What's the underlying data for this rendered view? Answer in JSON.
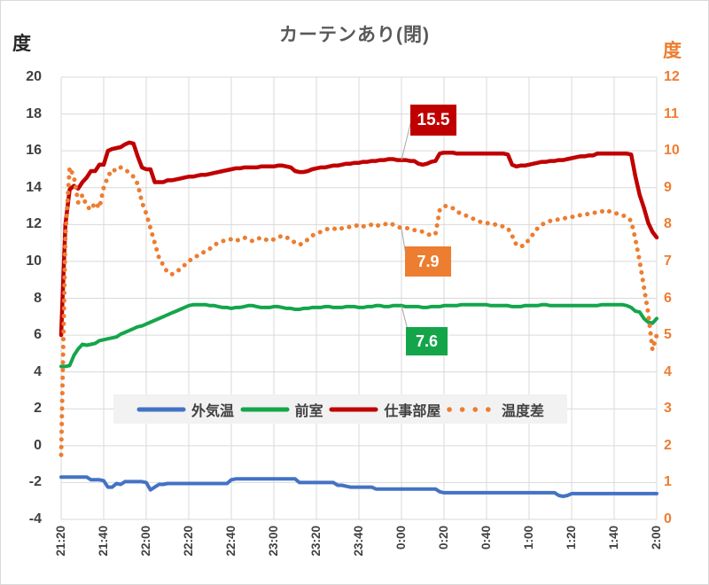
{
  "title": "カーテンあり(閉)",
  "left_axis": {
    "unit": "度",
    "ticks": [
      20,
      18,
      16,
      14,
      12,
      10,
      8,
      6,
      4,
      2,
      0,
      -2,
      -4
    ]
  },
  "right_axis": {
    "unit": "度",
    "ticks": [
      12,
      11,
      10,
      9,
      8,
      7,
      6,
      5,
      4,
      3,
      2,
      1,
      0
    ]
  },
  "x_axis": {
    "ticks": [
      "21:20",
      "21:40",
      "22:00",
      "22:20",
      "22:40",
      "23:00",
      "23:20",
      "23:40",
      "0:00",
      "0:20",
      "0:40",
      "1:00",
      "1:20",
      "1:40",
      "2:00"
    ]
  },
  "legend": {
    "items": [
      {
        "label": "外気温",
        "color": "#4472C4",
        "style": "solid"
      },
      {
        "label": "前室",
        "color": "#14A54B",
        "style": "solid"
      },
      {
        "label": "仕事部屋",
        "color": "#C00000",
        "style": "solid"
      },
      {
        "label": "温度差",
        "color": "#ED7D31",
        "style": "dotted"
      }
    ]
  },
  "data_labels": [
    {
      "text": "15.5",
      "series": "仕事部屋",
      "color": "#C00000"
    },
    {
      "text": "7.9",
      "series": "温度差",
      "color": "#ED7D31"
    },
    {
      "text": "7.6",
      "series": "前室",
      "color": "#14A54B"
    }
  ],
  "chart_data": {
    "type": "line",
    "title": "カーテンあり(閉)",
    "x_start": "21:20",
    "x_step_minutes": 2,
    "x_count": 141,
    "x_ticks": [
      "21:20",
      "21:40",
      "22:00",
      "22:20",
      "22:40",
      "23:00",
      "23:20",
      "23:40",
      "0:00",
      "0:20",
      "0:40",
      "1:00",
      "1:20",
      "1:40",
      "2:00"
    ],
    "left_ylim": [
      -4,
      20
    ],
    "right_ylim": [
      0,
      12
    ],
    "grid": true,
    "legend_position": "inside-bottom",
    "annotations": [
      {
        "text": "15.5",
        "series": "仕事部屋",
        "x": "0:00",
        "value": 15.5
      },
      {
        "text": "7.9",
        "series": "温度差",
        "x": "0:00",
        "value": 7.9
      },
      {
        "text": "7.6",
        "series": "前室",
        "x": "0:00",
        "value": 7.6
      }
    ],
    "series": [
      {
        "name": "外気温",
        "axis": "left",
        "color": "#4472C4",
        "style": "solid",
        "width": 4,
        "values": [
          -1.7,
          -1.7,
          -1.7,
          -1.7,
          -1.7,
          -1.7,
          -1.7,
          -1.85,
          -1.85,
          -1.85,
          -1.9,
          -2.25,
          -2.25,
          -2.05,
          -2.1,
          -1.95,
          -1.95,
          -1.95,
          -1.95,
          -1.95,
          -2.0,
          -2.4,
          -2.25,
          -2.1,
          -2.1,
          -2.05,
          -2.05,
          -2.05,
          -2.05,
          -2.05,
          -2.05,
          -2.05,
          -2.05,
          -2.05,
          -2.05,
          -2.05,
          -2.05,
          -2.05,
          -2.05,
          -2.05,
          -1.85,
          -1.8,
          -1.8,
          -1.8,
          -1.8,
          -1.8,
          -1.8,
          -1.8,
          -1.8,
          -1.8,
          -1.8,
          -1.8,
          -1.8,
          -1.8,
          -1.8,
          -1.8,
          -2.0,
          -2.0,
          -2.0,
          -2.0,
          -2.0,
          -2.0,
          -2.0,
          -2.0,
          -2.0,
          -2.15,
          -2.15,
          -2.2,
          -2.25,
          -2.25,
          -2.25,
          -2.25,
          -2.25,
          -2.25,
          -2.35,
          -2.35,
          -2.35,
          -2.35,
          -2.35,
          -2.35,
          -2.35,
          -2.35,
          -2.35,
          -2.35,
          -2.35,
          -2.35,
          -2.35,
          -2.35,
          -2.35,
          -2.5,
          -2.55,
          -2.55,
          -2.55,
          -2.55,
          -2.55,
          -2.55,
          -2.55,
          -2.55,
          -2.55,
          -2.55,
          -2.55,
          -2.55,
          -2.55,
          -2.55,
          -2.55,
          -2.55,
          -2.55,
          -2.55,
          -2.55,
          -2.55,
          -2.55,
          -2.55,
          -2.55,
          -2.55,
          -2.55,
          -2.55,
          -2.55,
          -2.7,
          -2.75,
          -2.7,
          -2.6,
          -2.6,
          -2.6,
          -2.6,
          -2.6,
          -2.6,
          -2.6,
          -2.6,
          -2.6,
          -2.6,
          -2.6,
          -2.6,
          -2.6,
          -2.6,
          -2.6,
          -2.6,
          -2.6,
          -2.6,
          -2.6,
          -2.6,
          -2.6
        ]
      },
      {
        "name": "前室",
        "axis": "left",
        "color": "#14A54B",
        "style": "solid",
        "width": 4,
        "values": [
          4.3,
          4.3,
          4.35,
          4.9,
          5.25,
          5.5,
          5.45,
          5.5,
          5.55,
          5.7,
          5.75,
          5.8,
          5.85,
          5.9,
          6.05,
          6.15,
          6.25,
          6.35,
          6.45,
          6.5,
          6.6,
          6.7,
          6.8,
          6.9,
          7.0,
          7.1,
          7.2,
          7.3,
          7.4,
          7.5,
          7.6,
          7.65,
          7.65,
          7.65,
          7.65,
          7.6,
          7.6,
          7.55,
          7.5,
          7.5,
          7.45,
          7.5,
          7.5,
          7.55,
          7.6,
          7.6,
          7.55,
          7.5,
          7.5,
          7.5,
          7.55,
          7.55,
          7.5,
          7.45,
          7.45,
          7.4,
          7.4,
          7.45,
          7.45,
          7.5,
          7.5,
          7.5,
          7.55,
          7.55,
          7.5,
          7.5,
          7.5,
          7.55,
          7.55,
          7.55,
          7.5,
          7.5,
          7.55,
          7.55,
          7.6,
          7.6,
          7.55,
          7.55,
          7.6,
          7.6,
          7.6,
          7.55,
          7.55,
          7.55,
          7.55,
          7.5,
          7.5,
          7.55,
          7.55,
          7.55,
          7.6,
          7.6,
          7.6,
          7.6,
          7.65,
          7.65,
          7.65,
          7.65,
          7.65,
          7.65,
          7.65,
          7.6,
          7.6,
          7.6,
          7.6,
          7.6,
          7.55,
          7.55,
          7.55,
          7.6,
          7.6,
          7.6,
          7.6,
          7.65,
          7.65,
          7.6,
          7.6,
          7.6,
          7.6,
          7.6,
          7.6,
          7.6,
          7.6,
          7.6,
          7.6,
          7.6,
          7.6,
          7.65,
          7.65,
          7.65,
          7.65,
          7.65,
          7.65,
          7.6,
          7.5,
          7.3,
          7.25,
          6.9,
          6.7,
          6.65,
          6.9
        ]
      },
      {
        "name": "仕事部屋",
        "axis": "left",
        "color": "#C00000",
        "style": "solid",
        "width": 4.5,
        "values": [
          6.0,
          12.0,
          13.9,
          14.1,
          13.95,
          14.3,
          14.55,
          14.9,
          14.9,
          15.25,
          15.25,
          16.0,
          16.1,
          16.15,
          16.2,
          16.35,
          16.45,
          16.4,
          15.7,
          15.1,
          15.0,
          15.0,
          14.3,
          14.3,
          14.3,
          14.4,
          14.4,
          14.45,
          14.5,
          14.55,
          14.6,
          14.6,
          14.65,
          14.7,
          14.7,
          14.75,
          14.8,
          14.85,
          14.9,
          14.95,
          15.0,
          15.05,
          15.05,
          15.1,
          15.1,
          15.1,
          15.1,
          15.15,
          15.15,
          15.15,
          15.15,
          15.2,
          15.2,
          15.15,
          15.1,
          14.9,
          14.85,
          14.85,
          14.9,
          15.0,
          15.05,
          15.1,
          15.1,
          15.15,
          15.2,
          15.2,
          15.25,
          15.3,
          15.3,
          15.35,
          15.35,
          15.4,
          15.4,
          15.45,
          15.45,
          15.5,
          15.5,
          15.55,
          15.55,
          15.5,
          15.5,
          15.5,
          15.45,
          15.45,
          15.3,
          15.25,
          15.3,
          15.4,
          15.45,
          15.85,
          15.9,
          15.9,
          15.9,
          15.85,
          15.85,
          15.85,
          15.85,
          15.85,
          15.85,
          15.85,
          15.85,
          15.85,
          15.85,
          15.85,
          15.85,
          15.8,
          15.25,
          15.15,
          15.2,
          15.2,
          15.25,
          15.3,
          15.35,
          15.4,
          15.4,
          15.45,
          15.45,
          15.5,
          15.5,
          15.55,
          15.6,
          15.65,
          15.7,
          15.7,
          15.75,
          15.75,
          15.85,
          15.85,
          15.85,
          15.85,
          15.85,
          15.85,
          15.85,
          15.85,
          15.8,
          14.6,
          13.6,
          12.9,
          12.1,
          11.6,
          11.3
        ]
      },
      {
        "name": "温度差",
        "axis": "right",
        "color": "#ED7D31",
        "style": "dotted",
        "width": 5,
        "values": [
          1.75,
          7.7,
          9.55,
          9.3,
          8.6,
          8.8,
          8.5,
          8.4,
          8.6,
          8.45,
          9.0,
          9.3,
          9.5,
          9.45,
          9.55,
          9.5,
          9.4,
          9.3,
          9.1,
          8.6,
          8.3,
          7.9,
          7.5,
          7.1,
          6.9,
          6.7,
          6.65,
          6.7,
          6.8,
          6.9,
          7.0,
          7.1,
          7.15,
          7.2,
          7.3,
          7.35,
          7.45,
          7.5,
          7.55,
          7.6,
          7.6,
          7.55,
          7.6,
          7.65,
          7.6,
          7.55,
          7.6,
          7.65,
          7.6,
          7.55,
          7.6,
          7.65,
          7.7,
          7.65,
          7.6,
          7.5,
          7.45,
          7.5,
          7.6,
          7.7,
          7.75,
          7.8,
          7.85,
          7.9,
          7.9,
          7.85,
          7.9,
          7.9,
          7.95,
          7.95,
          8.0,
          7.95,
          7.95,
          8.0,
          7.95,
          8.0,
          8.0,
          8.05,
          8.0,
          7.95,
          7.9,
          7.9,
          7.9,
          7.85,
          7.85,
          7.8,
          7.75,
          7.7,
          7.75,
          8.4,
          8.5,
          8.5,
          8.45,
          8.35,
          8.3,
          8.25,
          8.2,
          8.15,
          8.1,
          8.05,
          8.05,
          8.0,
          8.0,
          7.95,
          7.95,
          7.9,
          7.7,
          7.45,
          7.4,
          7.45,
          7.6,
          7.75,
          7.9,
          8.0,
          8.05,
          8.1,
          8.1,
          8.15,
          8.15,
          8.2,
          8.2,
          8.25,
          8.25,
          8.25,
          8.3,
          8.3,
          8.35,
          8.35,
          8.4,
          8.35,
          8.3,
          8.3,
          8.25,
          8.2,
          8.1,
          7.6,
          7.0,
          6.3,
          5.6,
          4.6,
          5.0
        ]
      }
    ]
  }
}
